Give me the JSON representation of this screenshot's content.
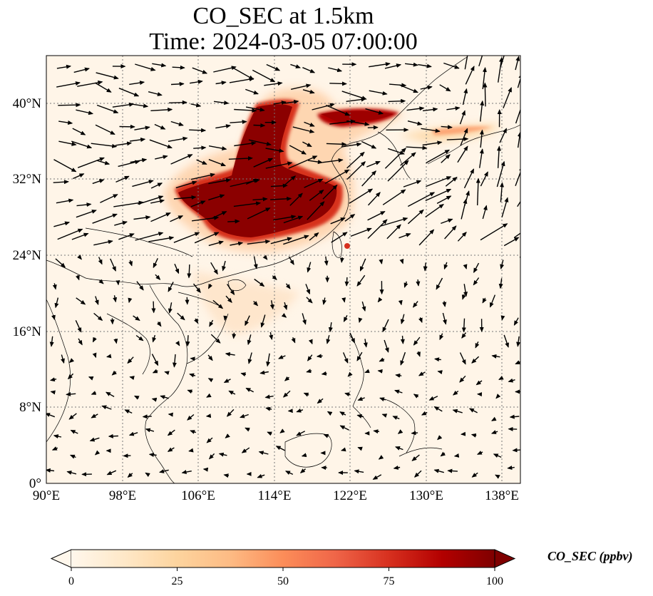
{
  "title": {
    "line1": "CO_SEC at 1.5km",
    "line2": "Time: 2024-03-05 07:00:00"
  },
  "map": {
    "lon_ticks": [
      "90°E",
      "98°E",
      "106°E",
      "114°E",
      "122°E",
      "130°E",
      "138°E"
    ],
    "lat_ticks": [
      "0°",
      "8°N",
      "16°N",
      "24°N",
      "32°N",
      "40°N"
    ],
    "lon_range": [
      90,
      140
    ],
    "lat_range": [
      0,
      45
    ],
    "gridlines": "dotted",
    "background_color": "#fff5e8",
    "features": "coastlines, country borders, wind vectors at 1.5km"
  },
  "colorbar": {
    "label": "CO_SEC (ppbv)",
    "ticks": [
      "0",
      "25",
      "50",
      "75",
      "100"
    ],
    "range": [
      0,
      100
    ],
    "colormap": "OrRd",
    "extend": "both",
    "colors": [
      "#fff7ec",
      "#fee8c8",
      "#fdd49e",
      "#fdbb84",
      "#fc8d59",
      "#ef6548",
      "#d7301f",
      "#b30000",
      "#7f0000"
    ]
  }
}
